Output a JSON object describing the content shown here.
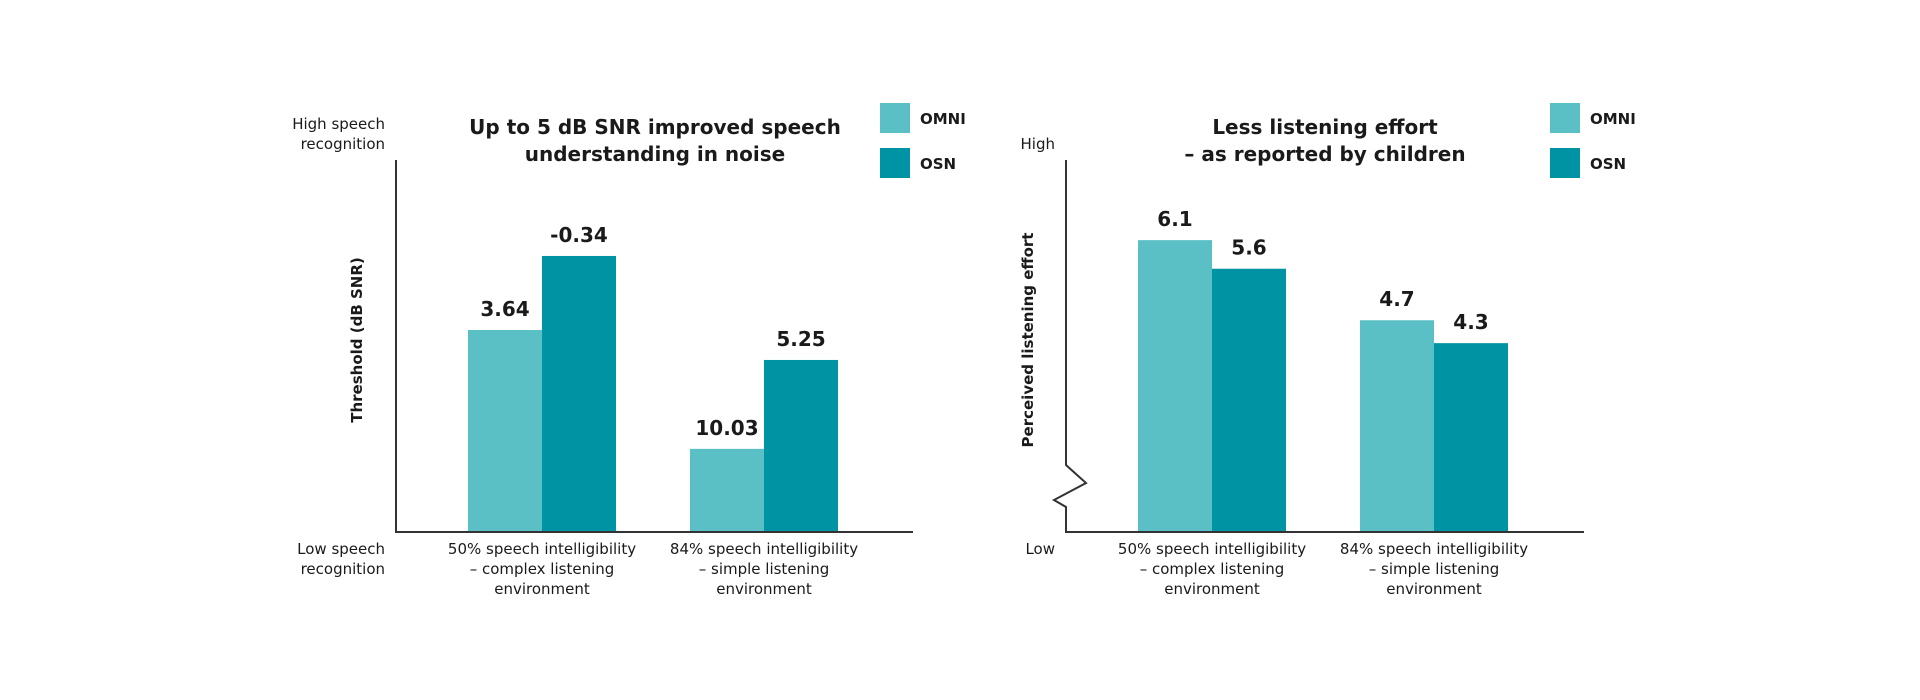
{
  "chart_data": [
    {
      "type": "bar",
      "title_lines": [
        "Up to 5 dB SNR improved speech",
        "understanding in noise"
      ],
      "ylabel": "Threshold (dB SNR)",
      "y_top_label_lines": [
        "High speech",
        "recognition"
      ],
      "y_bottom_label_lines": [
        "Low speech",
        "recognition"
      ],
      "y_axis_inverted": true,
      "ylim": [
        14.5,
        -5.5
      ],
      "categories": [
        [
          "50% speech intelligibility",
          "– complex listening",
          "environment"
        ],
        [
          "84% speech intelligibility",
          "– simple listening",
          "environment"
        ]
      ],
      "series": [
        {
          "name": "OMNI",
          "values": [
            3.64,
            10.03
          ]
        },
        {
          "name": "OSN",
          "values": [
            -0.34,
            5.25
          ]
        }
      ],
      "legend": "top-right",
      "grid": false,
      "axis_break": false
    },
    {
      "type": "bar",
      "title_lines": [
        "Less listening effort",
        "– as reported by children"
      ],
      "ylabel": "Perceived listening effort",
      "y_top_label_lines": [
        "High"
      ],
      "y_bottom_label_lines": [
        "Low"
      ],
      "y_axis_inverted": false,
      "ylim": [
        1,
        7.5
      ],
      "categories": [
        [
          "50% speech intelligibility",
          "– complex listening",
          "environment"
        ],
        [
          "84% speech intelligibility",
          "– simple listening",
          "environment"
        ]
      ],
      "series": [
        {
          "name": "OMNI",
          "values": [
            6.1,
            4.7
          ]
        },
        {
          "name": "OSN",
          "values": [
            5.6,
            4.3
          ]
        }
      ],
      "legend": "top-right",
      "grid": false,
      "axis_break": true
    }
  ],
  "colors": {
    "OMNI": "#5bc0c6",
    "OSN": "#0093a3",
    "axis": "#333333",
    "text": "#1a1a1a"
  }
}
